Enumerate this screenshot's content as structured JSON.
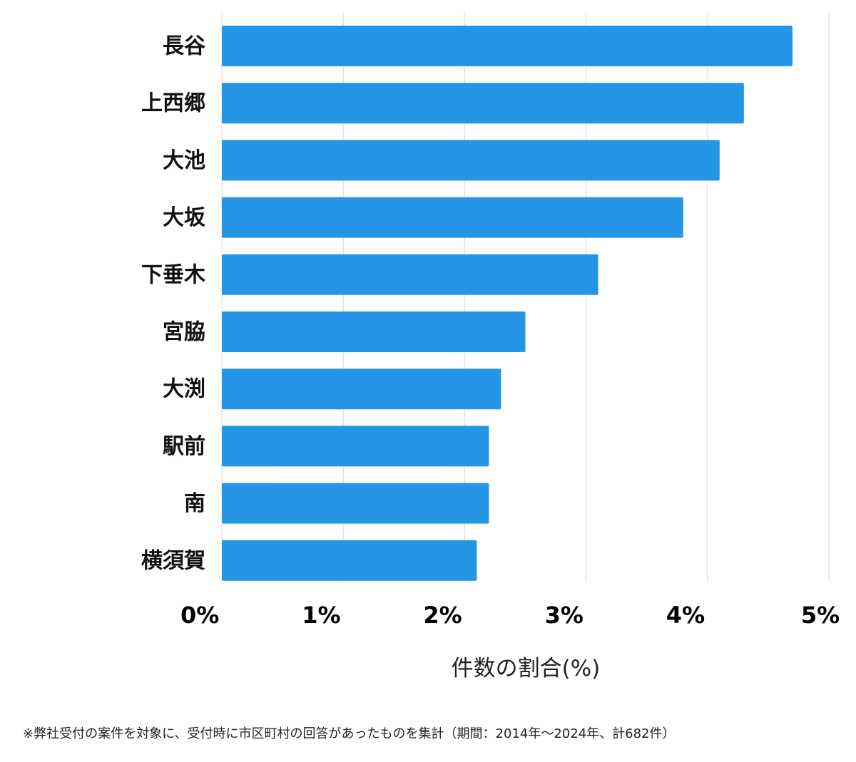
{
  "chart_data": {
    "type": "bar",
    "orientation": "horizontal",
    "categories": [
      "長谷",
      "上西郷",
      "大池",
      "大坂",
      "下垂木",
      "宮脇",
      "大渕",
      "駅前",
      "南",
      "横須賀"
    ],
    "values": [
      4.7,
      4.3,
      4.1,
      3.8,
      3.1,
      2.5,
      2.3,
      2.2,
      2.2,
      2.1
    ],
    "xlabel": "件数の割合(%)",
    "xlim": [
      0,
      5
    ],
    "xticks": [
      0,
      1,
      2,
      3,
      4,
      5
    ],
    "tick_labels": [
      "0%",
      "1%",
      "2%",
      "3%",
      "4%",
      "5%"
    ],
    "grid": true,
    "bar_color": "#2595e6"
  },
  "footnote": "※弊社受付の案件を対象に、受付時に市区町村の回答があったものを集計（期間：2014年～2024年、計682件）"
}
